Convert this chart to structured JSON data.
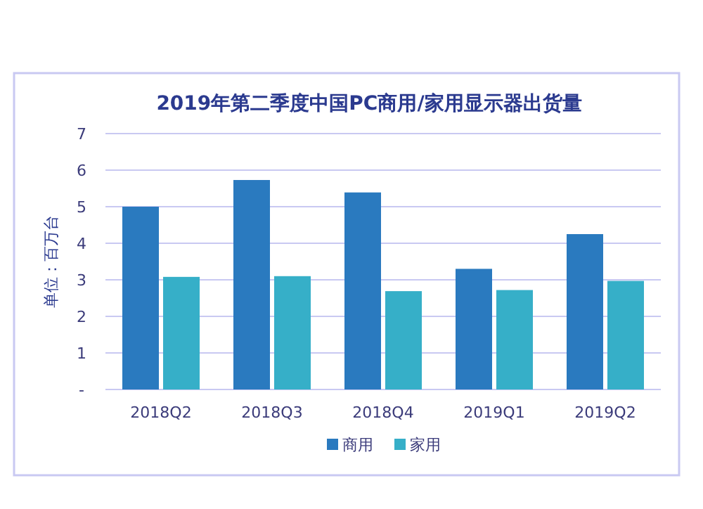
{
  "chart_data": {
    "type": "bar",
    "title": "2019年第二季度中国PC商用/家用显示器出货量",
    "ylabel": "单位：百万台",
    "categories": [
      "2018Q2",
      "2018Q3",
      "2018Q4",
      "2019Q1",
      "2019Q2"
    ],
    "series": [
      {
        "name": "商用",
        "color": "#2a7abf",
        "values": [
          5.0,
          5.73,
          5.39,
          3.3,
          4.25
        ]
      },
      {
        "name": "家用",
        "color": "#36afc8",
        "values": [
          3.08,
          3.1,
          2.69,
          2.72,
          2.97
        ]
      }
    ],
    "ylim": [
      0,
      7
    ],
    "yticks": [
      {
        "value": 0,
        "label": "-"
      },
      1,
      2,
      3,
      4,
      5,
      6,
      7
    ],
    "grid": "y",
    "legend": "bottom"
  }
}
